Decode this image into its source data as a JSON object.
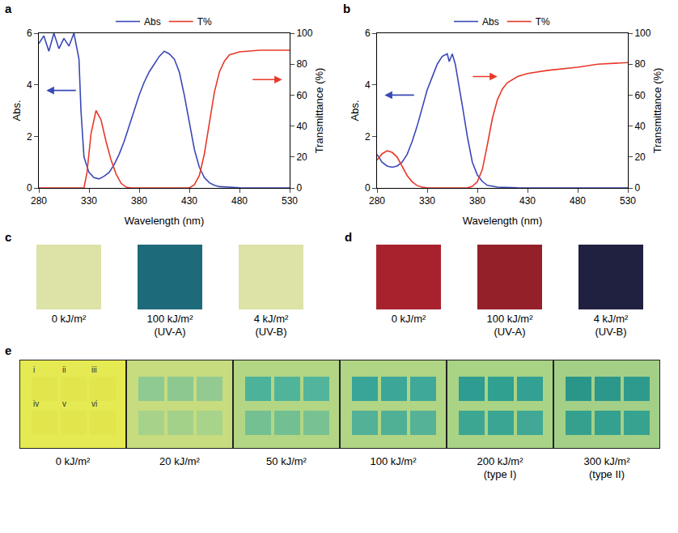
{
  "chart_data": [
    {
      "type": "line",
      "panel": "a",
      "x_label": "Wavelength (nm)",
      "y_label": "Abs.",
      "y2_label": "Transmittance (%)",
      "xlim": [
        280,
        530
      ],
      "xticks": [
        280,
        330,
        380,
        430,
        480,
        530
      ],
      "ylim": [
        0,
        6
      ],
      "yticks": [
        0,
        2,
        4,
        6
      ],
      "y2lim": [
        0,
        100
      ],
      "y2ticks": [
        0,
        20,
        40,
        60,
        80,
        100
      ],
      "legend": "top",
      "grid": false,
      "series": [
        {
          "name": "Abs",
          "color": "#3a49b6",
          "axis": "y",
          "x": [
            280,
            285,
            290,
            295,
            300,
            305,
            310,
            315,
            320,
            322,
            325,
            330,
            335,
            340,
            345,
            350,
            355,
            360,
            365,
            370,
            375,
            380,
            385,
            390,
            395,
            400,
            405,
            410,
            415,
            420,
            425,
            430,
            435,
            440,
            445,
            450,
            455,
            460,
            470,
            480,
            500,
            530
          ],
          "values": [
            5.6,
            5.9,
            5.3,
            6.0,
            5.4,
            5.8,
            5.5,
            6.0,
            5.0,
            3.0,
            1.2,
            0.6,
            0.4,
            0.35,
            0.45,
            0.6,
            0.9,
            1.3,
            1.8,
            2.4,
            3.0,
            3.6,
            4.1,
            4.5,
            4.8,
            5.1,
            5.3,
            5.2,
            5.0,
            4.5,
            3.6,
            2.5,
            1.5,
            0.8,
            0.4,
            0.2,
            0.1,
            0.05,
            0.02,
            0.01,
            0,
            0
          ]
        },
        {
          "name": "T%",
          "color": "#e8392a",
          "axis": "y2",
          "x": [
            280,
            325,
            328,
            332,
            337,
            342,
            347,
            352,
            357,
            362,
            367,
            372,
            430,
            435,
            440,
            445,
            450,
            455,
            460,
            465,
            470,
            480,
            500,
            530
          ],
          "values": [
            0,
            0,
            10,
            35,
            50,
            44,
            30,
            18,
            9,
            3,
            0.5,
            0,
            0,
            2,
            8,
            22,
            42,
            62,
            75,
            82,
            86,
            88,
            89,
            89
          ]
        }
      ]
    },
    {
      "type": "line",
      "panel": "b",
      "x_label": "Wavelength (nm)",
      "y_label": "Abs.",
      "y2_label": "Transmittance (%)",
      "xlim": [
        280,
        530
      ],
      "xticks": [
        280,
        330,
        380,
        430,
        480,
        530
      ],
      "ylim": [
        0,
        6
      ],
      "yticks": [
        0,
        2,
        4,
        6
      ],
      "y2lim": [
        0,
        100
      ],
      "y2ticks": [
        0,
        20,
        40,
        60,
        80,
        100
      ],
      "legend": "top",
      "grid": false,
      "series": [
        {
          "name": "Abs",
          "color": "#3a49b6",
          "axis": "y",
          "x": [
            280,
            285,
            290,
            295,
            300,
            305,
            310,
            315,
            320,
            325,
            330,
            335,
            340,
            345,
            350,
            352,
            355,
            358,
            360,
            365,
            370,
            375,
            380,
            385,
            390,
            400,
            420,
            530
          ],
          "values": [
            1.3,
            1.0,
            0.85,
            0.8,
            0.85,
            1.0,
            1.3,
            1.8,
            2.4,
            3.1,
            3.8,
            4.3,
            4.8,
            5.1,
            5.2,
            4.9,
            5.2,
            4.8,
            4.3,
            3.2,
            2.0,
            1.0,
            0.5,
            0.25,
            0.1,
            0.03,
            0.01,
            0
          ]
        },
        {
          "name": "T%",
          "color": "#e8392a",
          "axis": "y2",
          "x": [
            280,
            285,
            290,
            295,
            300,
            305,
            310,
            315,
            320,
            325,
            330,
            370,
            375,
            380,
            385,
            390,
            395,
            400,
            405,
            410,
            420,
            430,
            450,
            480,
            500,
            530
          ],
          "values": [
            18,
            22,
            24,
            23,
            20,
            14,
            8,
            4,
            1.5,
            0.5,
            0,
            0,
            1,
            4,
            12,
            28,
            45,
            57,
            64,
            68,
            72,
            74,
            76,
            78,
            80,
            81
          ]
        }
      ]
    }
  ],
  "swatches": [
    {
      "panel": "c",
      "items": [
        {
          "label": "0 kJ/m²",
          "color": "#dde2a6"
        },
        {
          "label": "100 kJ/m²",
          "note": "(UV-A)",
          "color": "#1d6b7a"
        },
        {
          "label": "4 kJ/m²",
          "note": "(UV-B)",
          "color": "#dde2a6"
        }
      ]
    },
    {
      "panel": "d",
      "items": [
        {
          "label": "0 kJ/m²",
          "color": "#a8222e"
        },
        {
          "label": "100 kJ/m²",
          "note": "(UV-A)",
          "color": "#94202a"
        },
        {
          "label": "4 kJ/m²",
          "note": "(UV-B)",
          "color": "#202040"
        }
      ]
    }
  ],
  "photos": {
    "panel": "e",
    "square_labels": [
      "i",
      "ii",
      "iii",
      "iv",
      "v",
      "vi"
    ],
    "items": [
      {
        "label": "0 kJ/m²",
        "color": "#e6ea52",
        "colors": [
          "#e2e64c",
          "#e2e64c",
          "#e2e64c",
          "#e2e64c",
          "#e2e64c",
          "#e2e64c"
        ]
      },
      {
        "label": "20 kJ/m²",
        "color": "#c6dc7e",
        "colors": [
          "#8fca92",
          "#8ec891",
          "#92ca92",
          "#a6d28a",
          "#a4d18a",
          "#a8d38a"
        ]
      },
      {
        "label": "50 kJ/m²",
        "color": "#b3d684",
        "colors": [
          "#4cb29a",
          "#50b49a",
          "#52b59b",
          "#74c092",
          "#72bf92",
          "#78c292"
        ]
      },
      {
        "label": "100 kJ/m²",
        "color": "#b0d584",
        "colors": [
          "#38a598",
          "#3ca799",
          "#40a899",
          "#52b196",
          "#50b096",
          "#56b296"
        ]
      },
      {
        "label": "200 kJ/m²",
        "note": "(type I)",
        "color": "#a9d385",
        "colors": [
          "#2e9c90",
          "#30a091",
          "#32a092",
          "#3ca693",
          "#3aa593",
          "#40a894"
        ]
      },
      {
        "label": "300 kJ/m²",
        "note": "(type II)",
        "color": "#a3d086",
        "colors": [
          "#2a968a",
          "#2c988c",
          "#2e9a8d",
          "#36a08f",
          "#34a08f",
          "#38a290"
        ]
      }
    ]
  }
}
